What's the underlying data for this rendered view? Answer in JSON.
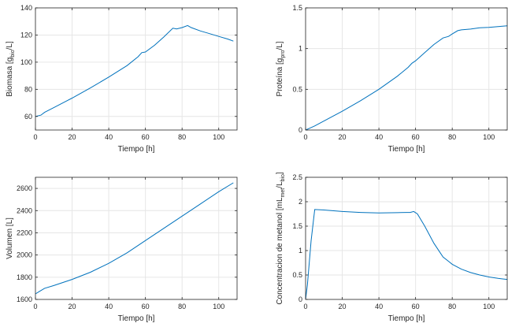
{
  "chart_data": [
    {
      "type": "line",
      "xlabel": "Tiempo [h]",
      "ylabel": {
        "main": "Biomasa [g",
        "sub": "bio",
        "tail": "/L]"
      },
      "xlim": [
        0,
        110
      ],
      "ylim": [
        50,
        140
      ],
      "xticks": [
        0,
        20,
        40,
        60,
        80,
        100
      ],
      "yticks": [
        60,
        80,
        100,
        120,
        140
      ],
      "grid": true,
      "series": [
        {
          "color": "#0072BD",
          "x": [
            0,
            3,
            5,
            10,
            20,
            30,
            40,
            50,
            56,
            58,
            60,
            65,
            70,
            75,
            77,
            80,
            83,
            85,
            90,
            95,
            100,
            105,
            108
          ],
          "y": [
            60,
            61,
            63,
            66.5,
            73.5,
            81,
            89,
            97.5,
            104,
            107,
            107.5,
            112.5,
            118.5,
            125,
            124.5,
            125.5,
            127,
            125.5,
            123,
            121,
            119,
            117,
            115.5
          ]
        }
      ]
    },
    {
      "type": "line",
      "xlabel": "Tiempo [h]",
      "ylabel": {
        "main": "Proteína [g",
        "sub": "pro",
        "tail": "/L]"
      },
      "xlim": [
        0,
        110
      ],
      "ylim": [
        0,
        1.5
      ],
      "xticks": [
        0,
        20,
        40,
        60,
        80,
        100
      ],
      "yticks": [
        0,
        0.5,
        1,
        1.5
      ],
      "grid": true,
      "series": [
        {
          "color": "#0072BD",
          "x": [
            0,
            2,
            5,
            10,
            20,
            30,
            40,
            50,
            56,
            58,
            60,
            65,
            70,
            75,
            78,
            80,
            83,
            85,
            90,
            95,
            100,
            105,
            110
          ],
          "y": [
            0,
            0.02,
            0.05,
            0.11,
            0.23,
            0.36,
            0.5,
            0.66,
            0.77,
            0.82,
            0.85,
            0.95,
            1.05,
            1.13,
            1.15,
            1.18,
            1.22,
            1.23,
            1.24,
            1.255,
            1.26,
            1.27,
            1.28
          ]
        }
      ]
    },
    {
      "type": "line",
      "xlabel": "Tiempo [h]",
      "ylabel": {
        "main": "Volumen [L]",
        "sub": "",
        "tail": ""
      },
      "xlim": [
        0,
        110
      ],
      "ylim": [
        1600,
        2700
      ],
      "xticks": [
        0,
        20,
        40,
        60,
        80,
        100
      ],
      "yticks": [
        1600,
        1800,
        2000,
        2200,
        2400,
        2600
      ],
      "grid": true,
      "series": [
        {
          "color": "#0072BD",
          "x": [
            0,
            2,
            5,
            10,
            20,
            30,
            40,
            50,
            60,
            70,
            80,
            90,
            100,
            108
          ],
          "y": [
            1650,
            1670,
            1700,
            1725,
            1780,
            1845,
            1925,
            2020,
            2130,
            2240,
            2350,
            2460,
            2570,
            2650
          ]
        }
      ]
    },
    {
      "type": "line",
      "xlabel": "Tiempo [h]",
      "ylabel": {
        "main": "Concentracion de metanol [mL",
        "sub": "met",
        "tail": "/L",
        "sub2": "bio",
        "tail2": "]"
      },
      "xlim": [
        0,
        110
      ],
      "ylim": [
        0,
        2.5
      ],
      "xticks": [
        0,
        20,
        40,
        60,
        80,
        100
      ],
      "yticks": [
        0,
        0.5,
        1,
        1.5,
        2,
        2.5
      ],
      "grid": true,
      "series": [
        {
          "color": "#0072BD",
          "x": [
            0,
            1,
            3,
            5,
            10,
            20,
            30,
            40,
            50,
            55,
            57,
            59,
            61,
            65,
            70,
            75,
            78,
            80,
            85,
            90,
            95,
            100,
            105,
            110
          ],
          "y": [
            0,
            0.3,
            1.2,
            1.84,
            1.83,
            1.8,
            1.78,
            1.77,
            1.775,
            1.78,
            1.78,
            1.8,
            1.75,
            1.5,
            1.15,
            0.87,
            0.78,
            0.72,
            0.62,
            0.55,
            0.5,
            0.46,
            0.43,
            0.41
          ]
        }
      ]
    }
  ]
}
